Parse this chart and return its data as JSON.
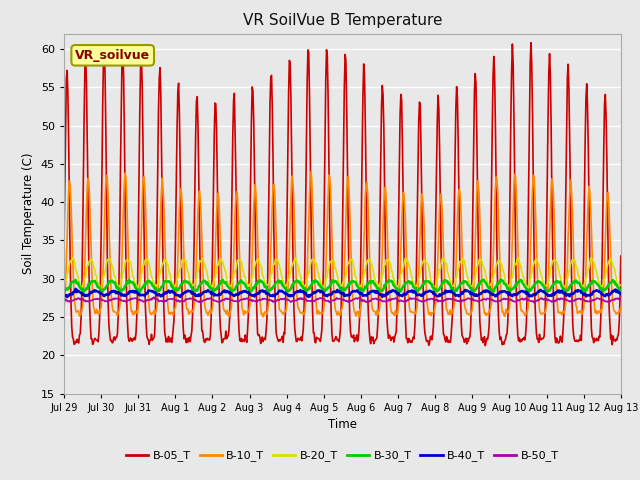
{
  "title": "VR SoilVue B Temperature",
  "ylabel": "Soil Temperature (C)",
  "xlabel": "Time",
  "ylim": [
    15,
    62
  ],
  "yticks": [
    15,
    20,
    25,
    30,
    35,
    40,
    45,
    50,
    55,
    60
  ],
  "background_color": "#e8e8e8",
  "plot_bg_color": "#e8e8e8",
  "grid_color": "#ffffff",
  "annotation_box": "VR_soilvue",
  "annotation_box_bg": "#ffff99",
  "annotation_box_border": "#999900",
  "x_tick_labels": [
    "Jul 29",
    "Jul 30",
    "Jul 31",
    "Aug 1",
    "Aug 2",
    "Aug 3",
    "Aug 4",
    "Aug 5",
    "Aug 6",
    "Aug 7",
    "Aug 8",
    "Aug 9",
    "Aug 10",
    "Aug 11",
    "Aug 12",
    "Aug 13"
  ],
  "series_colors": [
    "#cc0000",
    "#ff8800",
    "#dddd00",
    "#00cc00",
    "#0000cc",
    "#aa00aa"
  ],
  "series_lw": [
    1.2,
    1.2,
    1.2,
    1.8,
    1.8,
    1.2
  ],
  "legend_labels": [
    "B-05_T",
    "B-10_T",
    "B-20_T",
    "B-30_T",
    "B-40_T",
    "B-50_T"
  ]
}
